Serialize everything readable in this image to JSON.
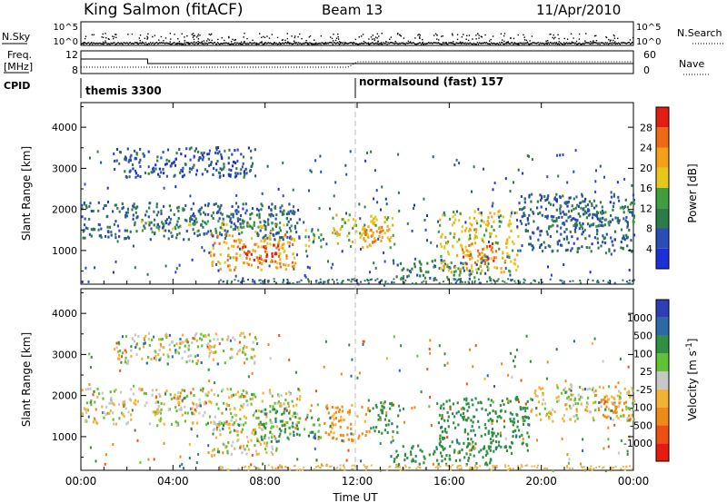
{
  "header": {
    "station": "King Salmon (fitACF)",
    "beam": "Beam 13",
    "date": "11/Apr/2010"
  },
  "strips": {
    "nsky_label": "N.Sky",
    "nsearch_label": "N.Search",
    "freq_label_1": "Freq.",
    "freq_label_2": "[MHz]",
    "nave_label": "Nave",
    "cpid_label": "CPID",
    "nsky_ticks": [
      "10^5",
      "10^0"
    ],
    "nsearch_ticks": [
      "10^5",
      "10^0"
    ],
    "freq_ticks": [
      "12",
      "8"
    ],
    "nave_ticks": [
      "60",
      "0"
    ],
    "cpid_segments": [
      {
        "start_hour": 0,
        "end_hour": 12,
        "name": "themis 3300"
      },
      {
        "start_hour": 12,
        "end_hour": 24,
        "name": "normalsound (fast) 157"
      }
    ]
  },
  "colors": {
    "power": [
      "#1f2fd8",
      "#2a4db8",
      "#2e7b4a",
      "#3f9f3f",
      "#e6c81a",
      "#f3a116",
      "#ef6a14",
      "#e41d12"
    ],
    "velocity": [
      "#e51a10",
      "#ee4f12",
      "#f08a16",
      "#f4b235",
      "#c7c7c7",
      "#61c238",
      "#2f8f43",
      "#2b6aa5",
      "#2d3fb6"
    ]
  },
  "chart_data": [
    {
      "type": "heatmap",
      "panel": "power",
      "xlabel": "",
      "ylabel": "Slant Range [km]",
      "xlim": [
        0,
        24
      ],
      "ylim": [
        180,
        4600
      ],
      "y_ticks": [
        1000,
        2000,
        3000,
        4000
      ],
      "x_ticks": [
        "00:00",
        "04:00",
        "08:00",
        "12:00",
        "16:00",
        "20:00",
        "00:00"
      ],
      "colorbar": {
        "label": "Power [dB]",
        "ticks": [
          4,
          8,
          12,
          16,
          20,
          24,
          28
        ],
        "range": [
          0,
          32
        ]
      },
      "regions": [
        {
          "x": [
            0,
            9.5
          ],
          "y": [
            1300,
            2200
          ],
          "value": 8
        },
        {
          "x": [
            2.5,
            9.2
          ],
          "y": [
            1450,
            1750
          ],
          "value": 14
        },
        {
          "x": [
            5.6,
            9.3
          ],
          "y": [
            550,
            1450
          ],
          "value": 22
        },
        {
          "x": [
            6.8,
            8.6
          ],
          "y": [
            700,
            1200
          ],
          "value": 28
        },
        {
          "x": [
            1.4,
            7.6
          ],
          "y": [
            2800,
            3550
          ],
          "value": 6
        },
        {
          "x": [
            9.7,
            10.4
          ],
          "y": [
            1000,
            1600
          ],
          "value": 16
        },
        {
          "x": [
            10.8,
            13.6
          ],
          "y": [
            1100,
            1900
          ],
          "value": 18
        },
        {
          "x": [
            12.2,
            13.6
          ],
          "y": [
            1200,
            1650
          ],
          "value": 24
        },
        {
          "x": [
            13.5,
            17.8
          ],
          "y": [
            330,
            820
          ],
          "value": 10
        },
        {
          "x": [
            15.5,
            19.0
          ],
          "y": [
            500,
            2000
          ],
          "value": 18
        },
        {
          "x": [
            16.5,
            18.0
          ],
          "y": [
            700,
            1200
          ],
          "value": 26
        },
        {
          "x": [
            19.0,
            24.0
          ],
          "y": [
            1000,
            2400
          ],
          "value": 7
        },
        {
          "x": [
            20.3,
            24.0
          ],
          "y": [
            1600,
            2200
          ],
          "value": 10
        }
      ]
    },
    {
      "type": "heatmap",
      "panel": "velocity",
      "xlabel": "Time UT",
      "ylabel": "Slant Range [km]",
      "xlim": [
        0,
        24
      ],
      "ylim": [
        180,
        4600
      ],
      "y_ticks": [
        1000,
        2000,
        3000,
        4000
      ],
      "x_ticks": [
        "00:00",
        "04:00",
        "08:00",
        "12:00",
        "16:00",
        "20:00",
        "00:00"
      ],
      "colorbar": {
        "label": "Velocity [m s^-1]",
        "ticks": [
          "1000",
          "500",
          "100",
          "25",
          "-25",
          "-100",
          "-500",
          "-1000"
        ]
      },
      "regions": [
        {
          "x": [
            0,
            9.5
          ],
          "y": [
            1300,
            2200
          ],
          "value": 0
        },
        {
          "x": [
            1.4,
            7.6
          ],
          "y": [
            2800,
            3550
          ],
          "value": 0
        },
        {
          "x": [
            5.6,
            8.5
          ],
          "y": [
            550,
            1400
          ],
          "value": 0
        },
        {
          "x": [
            7.5,
            9.5
          ],
          "y": [
            900,
            1700
          ],
          "value": 150
        },
        {
          "x": [
            9.6,
            10.4
          ],
          "y": [
            1000,
            1600
          ],
          "value": 120
        },
        {
          "x": [
            10.5,
            12.5
          ],
          "y": [
            900,
            1800
          ],
          "value": -150
        },
        {
          "x": [
            12.5,
            13.8
          ],
          "y": [
            1100,
            1900
          ],
          "value": 200
        },
        {
          "x": [
            13.4,
            17.8
          ],
          "y": [
            330,
            820
          ],
          "value": 200
        },
        {
          "x": [
            15.5,
            19.5
          ],
          "y": [
            600,
            2000
          ],
          "value": 200
        },
        {
          "x": [
            19.5,
            24.0
          ],
          "y": [
            1400,
            2300
          ],
          "value": 0
        },
        {
          "x": [
            22.4,
            24.0
          ],
          "y": [
            1500,
            2000
          ],
          "value": -150
        }
      ]
    }
  ],
  "legend_dots_note": ""
}
